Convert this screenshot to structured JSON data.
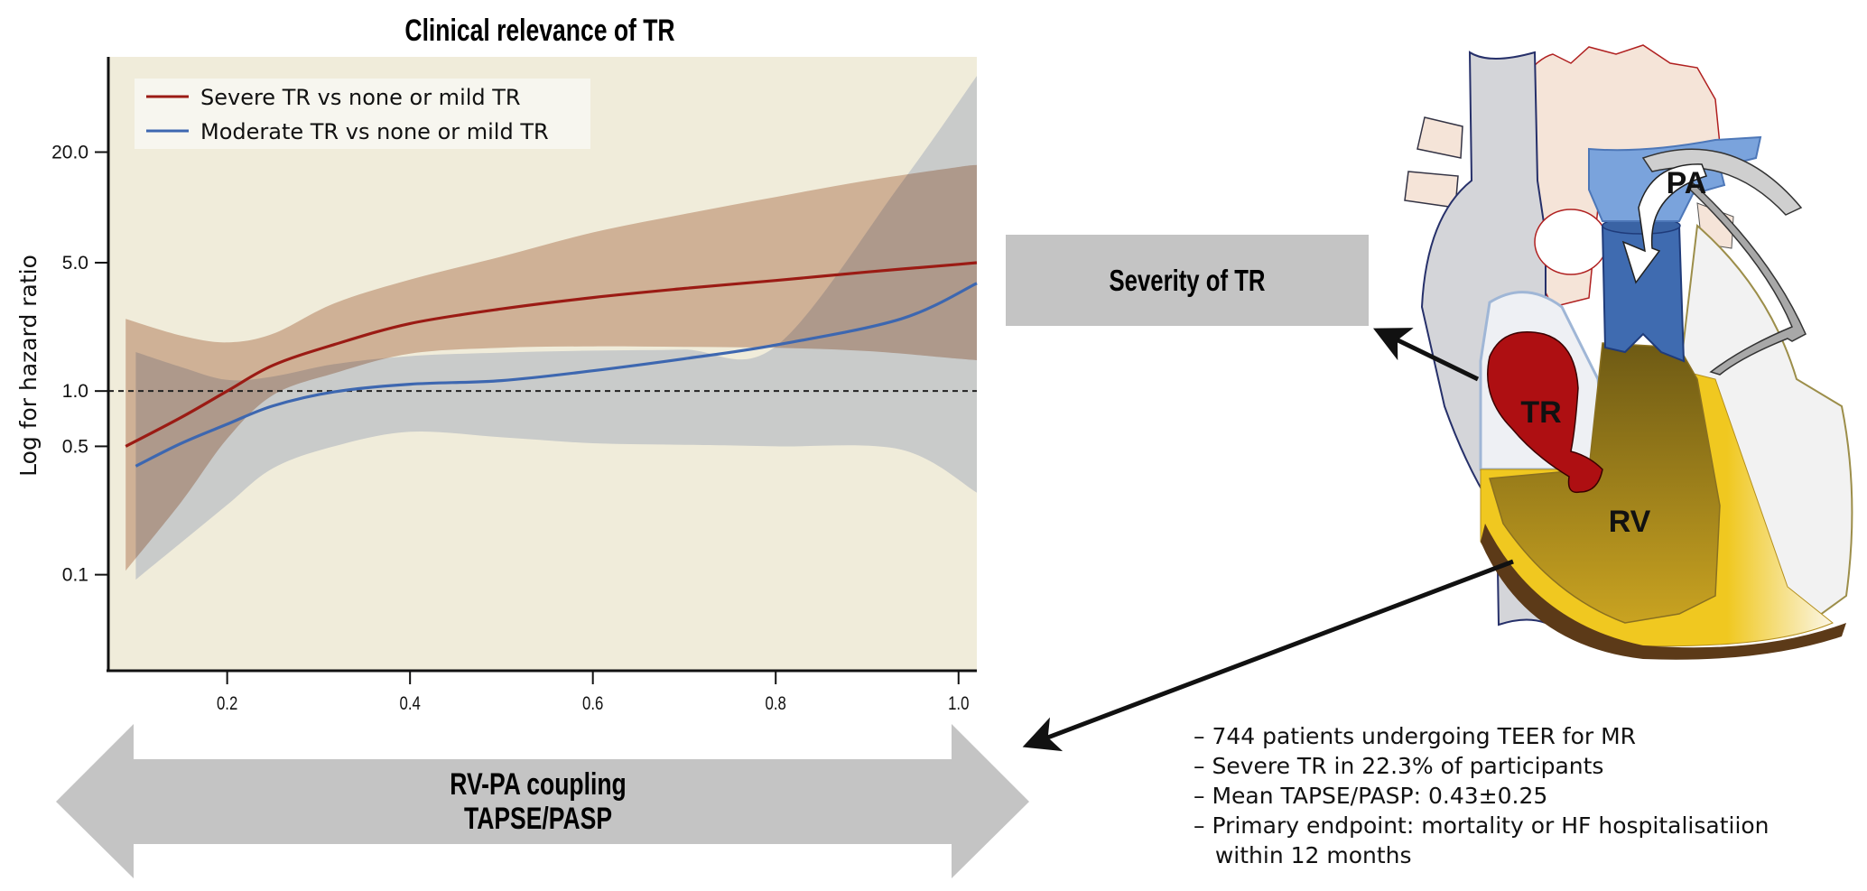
{
  "chart_data": {
    "type": "line",
    "title": "Clinical relevance of TR",
    "xlabel": "RV-PA coupling TAPSE/PASP",
    "ylabel": "Log for hazard ratio",
    "y_scale": "log",
    "xlim": [
      0.07,
      1.02
    ],
    "ylim": [
      0.03,
      66
    ],
    "x_ticks": [
      0.2,
      0.4,
      0.6,
      0.8,
      1.0
    ],
    "x_tick_labels": [
      "0.2",
      "0.4",
      "0.6",
      "0.8",
      "1.0"
    ],
    "y_ticks": [
      0.1,
      0.5,
      1.0,
      5.0,
      20.0
    ],
    "y_tick_labels": [
      "0.1",
      "0.5",
      "1.0",
      "5.0",
      "20.0"
    ],
    "reference_line": {
      "y": 1.0,
      "style": "dashed"
    },
    "grid": false,
    "legend_position": "top-left",
    "background_color": "#f0ecda",
    "series": [
      {
        "name": "Severe TR vs none or mild TR",
        "color": "#9b1b14",
        "band_color": "#dcbfb0",
        "x": [
          0.089,
          0.15,
          0.2,
          0.25,
          0.317,
          0.4,
          0.5,
          0.6,
          0.7,
          0.8,
          0.9,
          1.0,
          1.02
        ],
        "values": [
          0.5,
          0.72,
          1.0,
          1.38,
          1.79,
          2.33,
          2.8,
          3.23,
          3.62,
          4.0,
          4.45,
          4.9,
          5.0
        ],
        "ci_upper": [
          2.47,
          2.0,
          1.84,
          2.05,
          3.0,
          4.04,
          5.4,
          7.3,
          9.2,
          11.4,
          14.0,
          16.6,
          17.0
        ],
        "ci_lower": [
          0.105,
          0.25,
          0.55,
          0.95,
          1.25,
          1.6,
          1.72,
          1.75,
          1.74,
          1.72,
          1.65,
          1.5,
          1.47
        ]
      },
      {
        "name": "Moderate TR vs none or mild TR",
        "color": "#3d67b0",
        "band_color": "#d6dced",
        "x": [
          0.1,
          0.15,
          0.2,
          0.25,
          0.317,
          0.4,
          0.5,
          0.6,
          0.7,
          0.8,
          0.937,
          1.02
        ],
        "values": [
          0.39,
          0.52,
          0.66,
          0.83,
          0.99,
          1.09,
          1.14,
          1.29,
          1.5,
          1.78,
          2.47,
          3.86
        ],
        "ci_upper": [
          1.63,
          1.35,
          1.15,
          1.2,
          1.4,
          1.55,
          1.62,
          1.66,
          1.68,
          1.75,
          13.5,
          52.0
        ],
        "ci_lower": [
          0.094,
          0.15,
          0.24,
          0.38,
          0.5,
          0.6,
          0.56,
          0.52,
          0.51,
          0.5,
          0.48,
          0.28
        ]
      }
    ]
  },
  "coupling_arrow": {
    "line1": "RV-PA coupling",
    "line2": "TAPSE/PASP"
  },
  "severity_box": {
    "label": "Severity of TR"
  },
  "heart": {
    "labels": {
      "pa": "PA",
      "tr": "TR",
      "rv": "RV"
    }
  },
  "summary": {
    "bullets": [
      "– 744 patients undergoing TEER for MR",
      "– Severe TR in 22.3% of participants",
      "– Mean TAPSE/PASP: 0.43±0.25",
      "– Primary endpoint: mortality or HF hospitalisatiion",
      "   within 12 months"
    ]
  },
  "colors": {
    "arrow_gray": "#c4c4c4",
    "box_gray": "#c4c4c4"
  }
}
